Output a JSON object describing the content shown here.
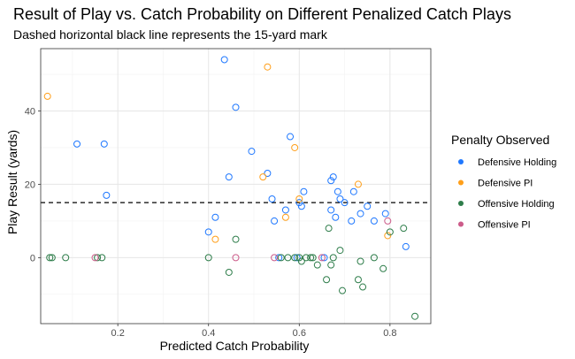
{
  "chart_data": {
    "type": "scatter",
    "title": "Result of Play vs. Catch Probability on Different Penalized Catch Plays",
    "subtitle": "Dashed horizontal black line represents the 15-yard mark",
    "xlabel": "Predicted Catch Probability",
    "ylabel": "Play Result (yards)",
    "xlim": [
      0.03,
      0.89
    ],
    "ylim": [
      -18,
      57
    ],
    "xticks": [
      0.2,
      0.4,
      0.6,
      0.8
    ],
    "xtick_labels": [
      "0.2",
      "0.4",
      "0.6",
      "0.8"
    ],
    "yticks": [
      0,
      20,
      40
    ],
    "ytick_labels": [
      "0",
      "20",
      "40"
    ],
    "grid": true,
    "reference_line": {
      "y": 15,
      "style": "dashed",
      "color": "#000000"
    },
    "legend": {
      "title": "Penalty Observed",
      "position": "right"
    },
    "series": [
      {
        "name": "Defensive Holding",
        "color": "#1f78ff",
        "points": [
          [
            0.11,
            31
          ],
          [
            0.17,
            31
          ],
          [
            0.175,
            17
          ],
          [
            0.4,
            7
          ],
          [
            0.415,
            11
          ],
          [
            0.435,
            54
          ],
          [
            0.445,
            22
          ],
          [
            0.46,
            41
          ],
          [
            0.495,
            29
          ],
          [
            0.53,
            23
          ],
          [
            0.54,
            16
          ],
          [
            0.545,
            10
          ],
          [
            0.57,
            13
          ],
          [
            0.58,
            33
          ],
          [
            0.6,
            15
          ],
          [
            0.605,
            14
          ],
          [
            0.61,
            18
          ],
          [
            0.67,
            21
          ],
          [
            0.675,
            22
          ],
          [
            0.67,
            13
          ],
          [
            0.68,
            11
          ],
          [
            0.685,
            18
          ],
          [
            0.69,
            16
          ],
          [
            0.7,
            15
          ],
          [
            0.715,
            10
          ],
          [
            0.72,
            18
          ],
          [
            0.735,
            12
          ],
          [
            0.75,
            14
          ],
          [
            0.765,
            10
          ],
          [
            0.79,
            12
          ],
          [
            0.835,
            3
          ],
          [
            0.555,
            0
          ],
          [
            0.595,
            0
          ],
          [
            0.655,
            0
          ]
        ]
      },
      {
        "name": "Defensive PI",
        "color": "#ff9f1a",
        "points": [
          [
            0.045,
            44
          ],
          [
            0.415,
            5
          ],
          [
            0.52,
            22
          ],
          [
            0.53,
            52
          ],
          [
            0.57,
            11
          ],
          [
            0.59,
            30
          ],
          [
            0.6,
            16
          ],
          [
            0.73,
            20
          ],
          [
            0.795,
            6
          ]
        ]
      },
      {
        "name": "Offensive Holding",
        "color": "#2e7d4a",
        "points": [
          [
            0.05,
            0
          ],
          [
            0.055,
            0
          ],
          [
            0.085,
            0
          ],
          [
            0.155,
            0
          ],
          [
            0.165,
            0
          ],
          [
            0.4,
            0
          ],
          [
            0.445,
            -4
          ],
          [
            0.46,
            5
          ],
          [
            0.56,
            0
          ],
          [
            0.575,
            0
          ],
          [
            0.59,
            0
          ],
          [
            0.6,
            0
          ],
          [
            0.605,
            -1
          ],
          [
            0.615,
            0
          ],
          [
            0.625,
            0
          ],
          [
            0.63,
            0
          ],
          [
            0.64,
            -2
          ],
          [
            0.66,
            -6
          ],
          [
            0.665,
            8
          ],
          [
            0.67,
            -2
          ],
          [
            0.675,
            0
          ],
          [
            0.69,
            2
          ],
          [
            0.695,
            -9
          ],
          [
            0.73,
            -6
          ],
          [
            0.735,
            -1
          ],
          [
            0.74,
            -8
          ],
          [
            0.765,
            0
          ],
          [
            0.785,
            -3
          ],
          [
            0.8,
            7
          ],
          [
            0.83,
            8
          ],
          [
            0.855,
            -16
          ]
        ]
      },
      {
        "name": "Offensive PI",
        "color": "#cc5c8a",
        "points": [
          [
            0.15,
            0
          ],
          [
            0.46,
            0
          ],
          [
            0.545,
            0
          ],
          [
            0.65,
            0
          ],
          [
            0.795,
            10
          ]
        ]
      }
    ]
  }
}
